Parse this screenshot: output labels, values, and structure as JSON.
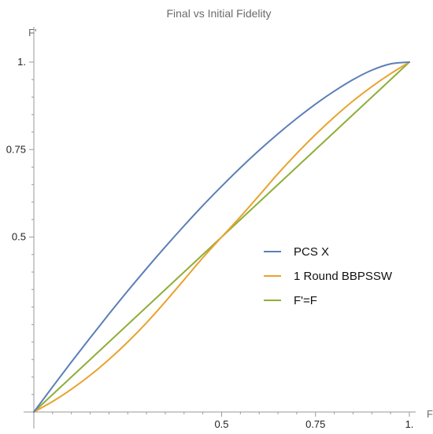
{
  "chart_data": {
    "type": "line",
    "title": "Final vs Initial Fidelity",
    "xlabel": "F",
    "ylabel": "F'",
    "xlim": [
      0,
      1
    ],
    "ylim": [
      0,
      1
    ],
    "x_ticks": [
      0.5,
      0.75,
      1
    ],
    "x_tick_labels": [
      "0.5",
      "0.75",
      "1."
    ],
    "y_ticks": [
      0.5,
      0.75,
      1
    ],
    "y_tick_labels": [
      "0.5",
      "0.75",
      "1."
    ],
    "grid": false,
    "legend_position": "right",
    "x": [
      0,
      0.05,
      0.1,
      0.15,
      0.2,
      0.25,
      0.3,
      0.35,
      0.4,
      0.45,
      0.5,
      0.55,
      0.6,
      0.65,
      0.7,
      0.75,
      0.8,
      0.85,
      0.9,
      0.95,
      1.0
    ],
    "series": [
      {
        "name": "PCS X",
        "color": "#5b7fb7",
        "values": [
          0,
          0.072,
          0.143,
          0.212,
          0.28,
          0.346,
          0.41,
          0.472,
          0.532,
          0.59,
          0.645,
          0.698,
          0.748,
          0.795,
          0.839,
          0.88,
          0.917,
          0.95,
          0.977,
          0.995,
          1.0
        ]
      },
      {
        "name": "1 Round BBPSSW",
        "color": "#e8a330",
        "values": [
          0,
          0.03,
          0.065,
          0.105,
          0.15,
          0.2,
          0.255,
          0.315,
          0.378,
          0.441,
          0.5,
          0.558,
          0.619,
          0.681,
          0.739,
          0.793,
          0.843,
          0.889,
          0.93,
          0.967,
          1.0
        ]
      },
      {
        "name": "F'=F",
        "color": "#8fae3a",
        "values": [
          0,
          0.05,
          0.1,
          0.15,
          0.2,
          0.25,
          0.3,
          0.35,
          0.4,
          0.45,
          0.5,
          0.55,
          0.6,
          0.65,
          0.7,
          0.75,
          0.8,
          0.85,
          0.9,
          0.95,
          1.0
        ]
      }
    ]
  }
}
